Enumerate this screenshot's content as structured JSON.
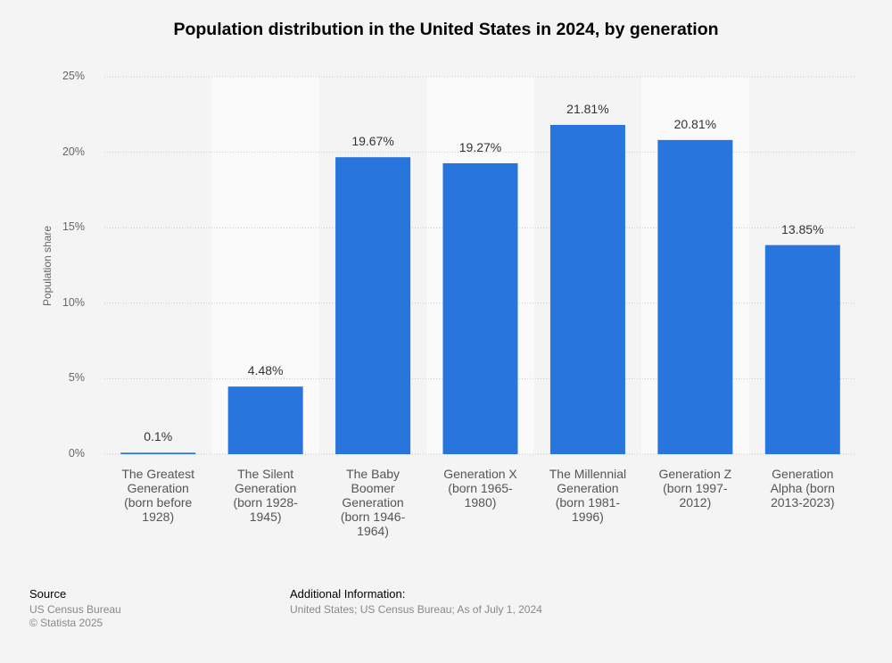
{
  "chart_data": {
    "type": "bar",
    "title": "Population distribution in the United States in 2024, by generation",
    "xlabel": "",
    "ylabel": "Population share",
    "ylim": [
      0,
      25
    ],
    "yticks": [
      "0%",
      "5%",
      "10%",
      "15%",
      "20%",
      "25%"
    ],
    "grid": true,
    "categories": [
      "The Greatest\nGeneration\n(born before\n1928)",
      "The Silent\nGeneration\n(born 1928-\n1945)",
      "The Baby\nBoomer\nGeneration\n(born 1946-\n1964)",
      "Generation X\n(born 1965-\n1980)",
      "The Millennial\nGeneration\n(born 1981-\n1996)",
      "Generation Z\n(born 1997-\n2012)",
      "Generation\nAlpha (born\n2013-2023)"
    ],
    "values": [
      0.1,
      4.48,
      19.67,
      19.27,
      21.81,
      20.81,
      13.85
    ],
    "data_labels": [
      "0.1%",
      "4.48%",
      "19.67%",
      "19.27%",
      "21.81%",
      "20.81%",
      "13.85%"
    ],
    "bar_color": "#2876dd"
  },
  "footer": {
    "source_heading": "Source",
    "source": "US Census Bureau",
    "copyright": "© Statista 2025",
    "additional_heading": "Additional Information:",
    "additional": "United States; US Census Bureau; As of July 1, 2024"
  }
}
